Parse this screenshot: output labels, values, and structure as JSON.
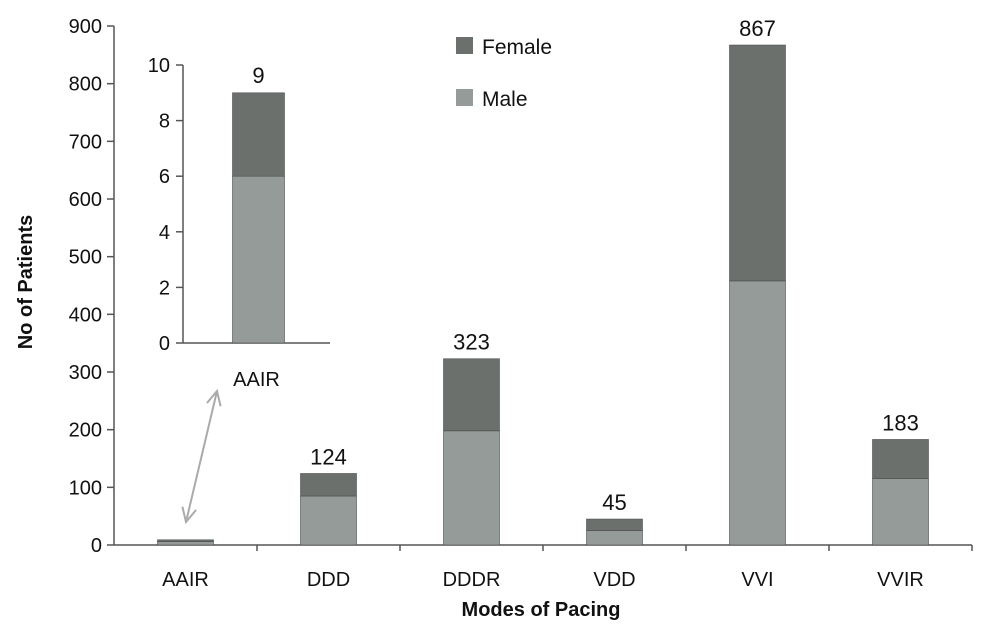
{
  "colors": {
    "female": "#6b706d",
    "male": "#959b98",
    "axis": "#555555",
    "arrow": "#aaaaaa"
  },
  "chart_data": {
    "type": "bar",
    "stacked": true,
    "xlabel": "Modes of Pacing",
    "ylabel": "No of Patients",
    "ylim": [
      0,
      900
    ],
    "yticks": [
      0,
      100,
      200,
      300,
      400,
      500,
      600,
      700,
      800,
      900
    ],
    "categories": [
      "AAIR",
      "DDD",
      "DDDR",
      "VDD",
      "VVI",
      "VVIR"
    ],
    "series": [
      {
        "name": "Male",
        "values": [
          6,
          85,
          198,
          25,
          458,
          115
        ]
      },
      {
        "name": "Female",
        "values": [
          3,
          39,
          125,
          20,
          409,
          68
        ]
      }
    ],
    "totals": [
      "9",
      "124",
      "323",
      "45",
      "867",
      "183"
    ],
    "legend": {
      "position": "top-center",
      "order": [
        "Female",
        "Male"
      ]
    },
    "grid": false,
    "inset": {
      "type": "bar",
      "stacked": true,
      "categories": [
        "AAIR"
      ],
      "ylim": [
        0,
        10
      ],
      "yticks": [
        0,
        2,
        4,
        6,
        8,
        10
      ],
      "series": [
        {
          "name": "Male",
          "values": [
            6
          ]
        },
        {
          "name": "Female",
          "values": [
            3
          ]
        }
      ],
      "totals": [
        "9"
      ]
    }
  }
}
